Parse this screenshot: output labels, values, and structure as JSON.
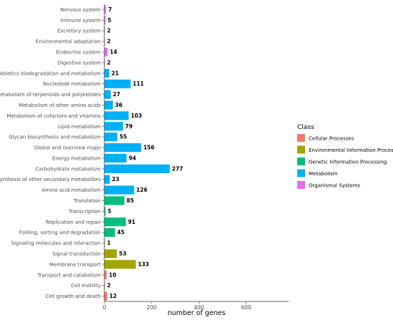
{
  "chart_data": {
    "type": "bar",
    "orientation": "horizontal",
    "xlabel": "number of genes",
    "ylabel": "",
    "xlim": [
      0,
      780
    ],
    "xticks": [
      0,
      200,
      400,
      600
    ],
    "legend": {
      "title": "Class",
      "position": "right",
      "entries": [
        {
          "name": "Cellular Processes",
          "color": "#F8766D"
        },
        {
          "name": "Environmental Information Processing",
          "color": "#A3A500"
        },
        {
          "name": "Genetic Information Processing",
          "color": "#00BF7D"
        },
        {
          "name": "Metabolism",
          "color": "#00B0F6"
        },
        {
          "name": "Organismal Systems",
          "color": "#E76BF3"
        }
      ]
    },
    "categories": [
      {
        "name": "Nervous system",
        "value": 7,
        "class": "Organismal Systems"
      },
      {
        "name": "Immune system",
        "value": 5,
        "class": "Organismal Systems"
      },
      {
        "name": "Excretory system",
        "value": 2,
        "class": "Organismal Systems"
      },
      {
        "name": "Environmental adaptation",
        "value": 2,
        "class": "Organismal Systems"
      },
      {
        "name": "Endocrine system",
        "value": 14,
        "class": "Organismal Systems"
      },
      {
        "name": "Digestive system",
        "value": 2,
        "class": "Organismal Systems"
      },
      {
        "name": "Xenobiotics biodegradation and metabolism",
        "value": 21,
        "class": "Metabolism"
      },
      {
        "name": "Nucleotide metabolism",
        "value": 111,
        "class": "Metabolism"
      },
      {
        "name": "Metabolism of terpenoids and polyketides",
        "value": 27,
        "class": "Metabolism"
      },
      {
        "name": "Metabolism of other amino acids",
        "value": 36,
        "class": "Metabolism"
      },
      {
        "name": "Metabolism of cofactors and vitamins",
        "value": 103,
        "class": "Metabolism"
      },
      {
        "name": "Lipid metabolism",
        "value": 79,
        "class": "Metabolism"
      },
      {
        "name": "Glycan biosynthesis and metabolism",
        "value": 55,
        "class": "Metabolism"
      },
      {
        "name": "Global and overview maps",
        "value": 156,
        "class": "Metabolism"
      },
      {
        "name": "Energy metabolism",
        "value": 94,
        "class": "Metabolism"
      },
      {
        "name": "Carbohydrate metabolism",
        "value": 277,
        "class": "Metabolism"
      },
      {
        "name": "Biosynthesis of other secondary metabolites",
        "value": 23,
        "class": "Metabolism"
      },
      {
        "name": "Amino acid metabolism",
        "value": 126,
        "class": "Metabolism"
      },
      {
        "name": "Translation",
        "value": 85,
        "class": "Genetic Information Processing"
      },
      {
        "name": "Transcription",
        "value": 5,
        "class": "Genetic Information Processing"
      },
      {
        "name": "Replication and repair",
        "value": 91,
        "class": "Genetic Information Processing"
      },
      {
        "name": "Folding, sorting and degradation",
        "value": 45,
        "class": "Genetic Information Processing"
      },
      {
        "name": "Signaling molecules and interaction",
        "value": 1,
        "class": "Environmental Information Processing"
      },
      {
        "name": "Signal transduction",
        "value": 53,
        "class": "Environmental Information Processing"
      },
      {
        "name": "Membrane transport",
        "value": 133,
        "class": "Environmental Information Processing"
      },
      {
        "name": "Transport and catabolism",
        "value": 10,
        "class": "Cellular Processes"
      },
      {
        "name": "Cell motility",
        "value": 2,
        "class": "Cellular Processes"
      },
      {
        "name": "Cell growth and death",
        "value": 12,
        "class": "Cellular Processes"
      }
    ]
  }
}
